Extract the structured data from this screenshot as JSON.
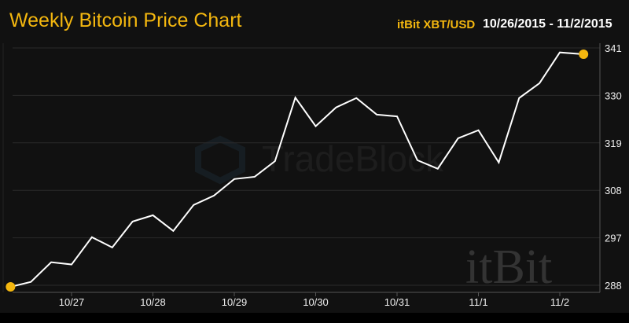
{
  "header": {
    "title": "Weekly Bitcoin Price Chart",
    "pair": "itBit XBT/USD",
    "date_range": "10/26/2015 - 11/2/2015"
  },
  "watermarks": {
    "tradeblock": "TradeBlock",
    "itbit": "itBit"
  },
  "colors": {
    "accent": "#f4b70f",
    "line": "#ffffff",
    "background": "#111111",
    "grid": "#2a2a2a"
  },
  "chart_data": {
    "type": "line",
    "title": "Weekly Bitcoin Price Chart",
    "xlabel": "",
    "ylabel": "",
    "x_tick_labels": [
      "10/27",
      "10/28",
      "10/29",
      "10/30",
      "10/31",
      "11/1",
      "11/2"
    ],
    "y_tick_labels": [
      "288",
      "297",
      "308",
      "319",
      "330",
      "341"
    ],
    "ylim": [
      287.6,
      341
    ],
    "grid": true,
    "y_axis_position": "right",
    "series": [
      {
        "x": [
          "2015-10-26T06:00",
          "2015-10-26T12:00",
          "2015-10-26T18:00",
          "2015-10-27T00:00",
          "2015-10-27T06:00",
          "2015-10-27T12:00",
          "2015-10-27T18:00",
          "2015-10-28T00:00",
          "2015-10-28T06:00",
          "2015-10-28T12:00",
          "2015-10-28T18:00",
          "2015-10-29T00:00",
          "2015-10-29T06:00",
          "2015-10-29T12:00",
          "2015-10-29T18:00",
          "2015-10-30T00:00",
          "2015-10-30T06:00",
          "2015-10-30T12:00",
          "2015-10-30T18:00",
          "2015-10-31T00:00",
          "2015-10-31T06:00",
          "2015-10-31T12:00",
          "2015-10-31T18:00",
          "2015-11-01T00:00",
          "2015-11-01T06:00",
          "2015-11-01T12:00",
          "2015-11-01T18:00",
          "2015-11-02T00:00",
          "2015-11-02T07:00"
        ],
        "values": [
          287.6,
          288.7,
          293.1,
          292.6,
          298.7,
          296.4,
          302.2,
          303.6,
          300.1,
          305.9,
          308.0,
          311.7,
          312.2,
          315.7,
          329.9,
          323.5,
          327.7,
          329.8,
          326.1,
          325.7,
          315.9,
          314.0,
          320.8,
          322.6,
          315.4,
          329.8,
          333.1,
          340.0,
          339.6
        ]
      }
    ]
  }
}
